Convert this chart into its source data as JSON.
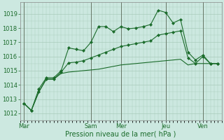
{
  "background_color": "#cce8e0",
  "grid_color": "#aaccbb",
  "line_color": "#1a6b2a",
  "xlabel": "Pression niveau de la mer( hPa )",
  "ylim": [
    1011.5,
    1019.8
  ],
  "yticks": [
    1012,
    1013,
    1014,
    1015,
    1016,
    1017,
    1018,
    1019
  ],
  "xtick_labels": [
    "Mar",
    "Sam",
    "Mer",
    "Jeu",
    "Ven"
  ],
  "xtick_positions": [
    0,
    9,
    13,
    19,
    24
  ],
  "total_points": 27,
  "series1_x": [
    0,
    1,
    2,
    3,
    4,
    5,
    6,
    7,
    8,
    9,
    10,
    11,
    12,
    13,
    14,
    15,
    16,
    17,
    18,
    19,
    20,
    21,
    22,
    23,
    24,
    25,
    26
  ],
  "series1_y": [
    1012.7,
    1012.2,
    1013.7,
    1014.5,
    1014.5,
    1015.0,
    1016.6,
    1016.5,
    1016.4,
    1017.0,
    1018.1,
    1018.1,
    1017.75,
    1018.1,
    1017.95,
    1018.0,
    1018.1,
    1018.25,
    1019.25,
    1019.1,
    1018.35,
    1018.6,
    1016.3,
    1015.75,
    1016.1,
    1015.5,
    1015.5
  ],
  "series2_x": [
    0,
    1,
    2,
    3,
    4,
    5,
    6,
    7,
    8,
    9,
    10,
    11,
    12,
    13,
    14,
    15,
    16,
    17,
    18,
    19,
    20,
    21,
    22,
    23,
    24,
    25,
    26
  ],
  "series2_y": [
    1012.7,
    1012.2,
    1013.5,
    1014.4,
    1014.4,
    1014.9,
    1015.55,
    1015.6,
    1015.7,
    1015.9,
    1016.1,
    1016.3,
    1016.5,
    1016.7,
    1016.8,
    1016.9,
    1017.0,
    1017.1,
    1017.5,
    1017.6,
    1017.7,
    1017.8,
    1015.9,
    1015.5,
    1016.0,
    1015.5,
    1015.5
  ],
  "series3_x": [
    0,
    1,
    2,
    3,
    4,
    5,
    6,
    7,
    8,
    9,
    10,
    11,
    12,
    13,
    14,
    15,
    16,
    17,
    18,
    19,
    20,
    21,
    22,
    23,
    24,
    25,
    26
  ],
  "series3_y": [
    1012.7,
    1012.2,
    1013.5,
    1014.4,
    1014.4,
    1014.8,
    1014.9,
    1014.95,
    1015.0,
    1015.05,
    1015.1,
    1015.2,
    1015.3,
    1015.4,
    1015.45,
    1015.5,
    1015.55,
    1015.6,
    1015.65,
    1015.7,
    1015.75,
    1015.8,
    1015.4,
    1015.5,
    1015.5,
    1015.5,
    1015.5
  ],
  "xlabel_fontsize": 7,
  "ytick_fontsize": 6,
  "xtick_fontsize": 6,
  "linewidth": 0.8,
  "markersize": 2.2
}
